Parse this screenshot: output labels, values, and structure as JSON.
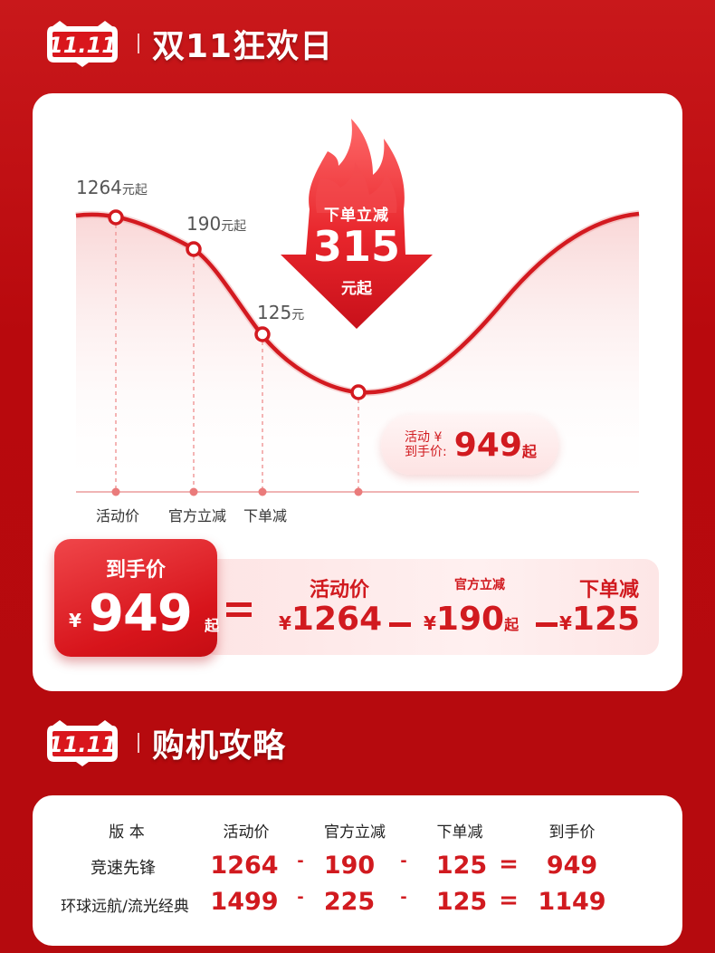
{
  "header1": {
    "logo_text": "11.11",
    "title": "双11狂欢日"
  },
  "header2": {
    "logo_text": "11.11",
    "title": "购机攻略"
  },
  "badge": {
    "line1": "下单立减",
    "amount": "315",
    "unit": "元起"
  },
  "chart_data": {
    "type": "line",
    "points": [
      {
        "label": "1264",
        "unit": "元起",
        "axis_label": "活动价"
      },
      {
        "label": "190",
        "unit": "元起",
        "axis_label": "官方立减"
      },
      {
        "label": "125",
        "unit": "元",
        "axis_label": "下单减"
      },
      {
        "label": "",
        "unit": "",
        "axis_label": ""
      }
    ],
    "final": {
      "label_line1": "活动 ¥",
      "label_line2": "到手价:",
      "value": "949",
      "unit": "起"
    }
  },
  "formula": {
    "final_label": "到手价",
    "currency": "¥",
    "final_value": "949",
    "final_unit": "起",
    "terms": [
      {
        "label": "活动价",
        "value": "1264",
        "unit": ""
      },
      {
        "label": "官方立减",
        "value": "190",
        "unit": "起"
      },
      {
        "label": "下单减",
        "value": "125",
        "unit": ""
      }
    ]
  },
  "table": {
    "headers": [
      "版 本",
      "活动价",
      "官方立减",
      "下单减",
      "到手价"
    ],
    "rows": [
      {
        "name": "竞速先锋",
        "price": "1264",
        "off": "190",
        "order": "125",
        "final": "949"
      },
      {
        "name": "环球远航/流光经典",
        "price": "1499",
        "off": "225",
        "order": "125",
        "final": "1149"
      }
    ],
    "minus": "-",
    "equals": "="
  },
  "colors": {
    "accent": "#d11a1f",
    "background": "#b8090d"
  }
}
